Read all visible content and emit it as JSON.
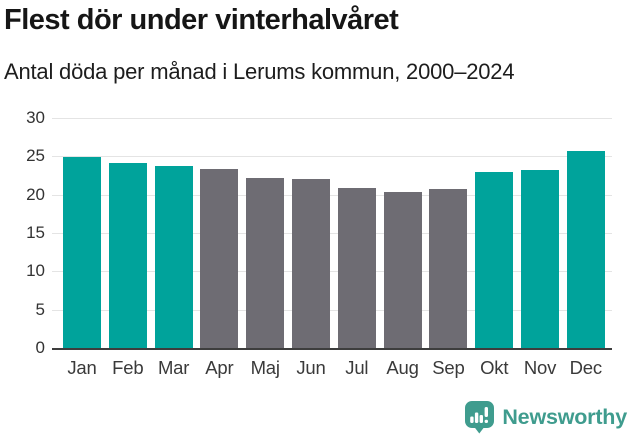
{
  "header": {
    "title": "Flest dör under vinterhalvåret",
    "subtitle": "Antal döda per månad i Lerums kommun, 2000–2024"
  },
  "chart_data": {
    "type": "bar",
    "title": "Flest dör under vinterhalvåret",
    "subtitle": "Antal döda per månad i Lerums kommun, 2000–2024",
    "categories": [
      "Jan",
      "Feb",
      "Mar",
      "Apr",
      "Maj",
      "Jun",
      "Jul",
      "Aug",
      "Sep",
      "Okt",
      "Nov",
      "Dec"
    ],
    "values": [
      24.9,
      24.1,
      23.7,
      23.4,
      22.2,
      22.1,
      20.9,
      20.4,
      20.8,
      23.0,
      23.2,
      25.7
    ],
    "bar_colors": [
      "#00a39b",
      "#00a39b",
      "#00a39b",
      "#6e6c73",
      "#6e6c73",
      "#6e6c73",
      "#6e6c73",
      "#6e6c73",
      "#6e6c73",
      "#00a39b",
      "#00a39b",
      "#00a39b"
    ],
    "highlighted_months": [
      "Jan",
      "Feb",
      "Mar",
      "Okt",
      "Nov",
      "Dec"
    ],
    "xlabel": "",
    "ylabel": "",
    "ylim": [
      0,
      30
    ],
    "yticks": [
      0,
      5,
      10,
      15,
      20,
      25,
      30
    ],
    "grid": true,
    "legend": "none"
  },
  "colors": {
    "accent_teal": "#00a39b",
    "muted_gray": "#6e6c73",
    "gridline": "#e4e4e4",
    "axis_line": "#3d3d3d",
    "logo_teal": "#3f9c8e"
  },
  "footer": {
    "brand": "Newsworthy"
  }
}
